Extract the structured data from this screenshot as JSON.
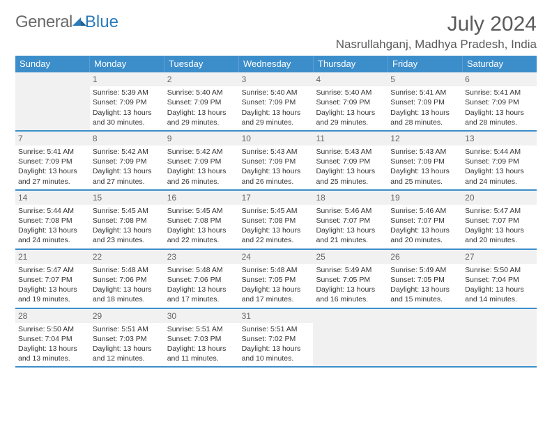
{
  "logo": {
    "general": "General",
    "blue": "Blue"
  },
  "title": "July 2024",
  "location": "Nasrullahganj, Madhya Pradesh, India",
  "colors": {
    "header_bg": "#3c8ecb",
    "header_border": "#5a9fd4",
    "week_divider": "#3c8ecb",
    "shaded_bg": "#f1f1f1",
    "text": "#333333",
    "title_text": "#5a5a5a",
    "logo_gray": "#6a6a6a",
    "logo_blue": "#2a7ab9"
  },
  "typography": {
    "title_fontsize": 30,
    "location_fontsize": 17,
    "dayheader_fontsize": 13,
    "daynum_fontsize": 12,
    "cell_fontsize": 10.5
  },
  "day_names": [
    "Sunday",
    "Monday",
    "Tuesday",
    "Wednesday",
    "Thursday",
    "Friday",
    "Saturday"
  ],
  "weeks": [
    [
      {
        "day": "",
        "sunrise": "",
        "sunset": "",
        "daylight": ""
      },
      {
        "day": "1",
        "sunrise": "Sunrise: 5:39 AM",
        "sunset": "Sunset: 7:09 PM",
        "daylight": "Daylight: 13 hours and 30 minutes."
      },
      {
        "day": "2",
        "sunrise": "Sunrise: 5:40 AM",
        "sunset": "Sunset: 7:09 PM",
        "daylight": "Daylight: 13 hours and 29 minutes."
      },
      {
        "day": "3",
        "sunrise": "Sunrise: 5:40 AM",
        "sunset": "Sunset: 7:09 PM",
        "daylight": "Daylight: 13 hours and 29 minutes."
      },
      {
        "day": "4",
        "sunrise": "Sunrise: 5:40 AM",
        "sunset": "Sunset: 7:09 PM",
        "daylight": "Daylight: 13 hours and 29 minutes."
      },
      {
        "day": "5",
        "sunrise": "Sunrise: 5:41 AM",
        "sunset": "Sunset: 7:09 PM",
        "daylight": "Daylight: 13 hours and 28 minutes."
      },
      {
        "day": "6",
        "sunrise": "Sunrise: 5:41 AM",
        "sunset": "Sunset: 7:09 PM",
        "daylight": "Daylight: 13 hours and 28 minutes."
      }
    ],
    [
      {
        "day": "7",
        "sunrise": "Sunrise: 5:41 AM",
        "sunset": "Sunset: 7:09 PM",
        "daylight": "Daylight: 13 hours and 27 minutes."
      },
      {
        "day": "8",
        "sunrise": "Sunrise: 5:42 AM",
        "sunset": "Sunset: 7:09 PM",
        "daylight": "Daylight: 13 hours and 27 minutes."
      },
      {
        "day": "9",
        "sunrise": "Sunrise: 5:42 AM",
        "sunset": "Sunset: 7:09 PM",
        "daylight": "Daylight: 13 hours and 26 minutes."
      },
      {
        "day": "10",
        "sunrise": "Sunrise: 5:43 AM",
        "sunset": "Sunset: 7:09 PM",
        "daylight": "Daylight: 13 hours and 26 minutes."
      },
      {
        "day": "11",
        "sunrise": "Sunrise: 5:43 AM",
        "sunset": "Sunset: 7:09 PM",
        "daylight": "Daylight: 13 hours and 25 minutes."
      },
      {
        "day": "12",
        "sunrise": "Sunrise: 5:43 AM",
        "sunset": "Sunset: 7:09 PM",
        "daylight": "Daylight: 13 hours and 25 minutes."
      },
      {
        "day": "13",
        "sunrise": "Sunrise: 5:44 AM",
        "sunset": "Sunset: 7:09 PM",
        "daylight": "Daylight: 13 hours and 24 minutes."
      }
    ],
    [
      {
        "day": "14",
        "sunrise": "Sunrise: 5:44 AM",
        "sunset": "Sunset: 7:08 PM",
        "daylight": "Daylight: 13 hours and 24 minutes."
      },
      {
        "day": "15",
        "sunrise": "Sunrise: 5:45 AM",
        "sunset": "Sunset: 7:08 PM",
        "daylight": "Daylight: 13 hours and 23 minutes."
      },
      {
        "day": "16",
        "sunrise": "Sunrise: 5:45 AM",
        "sunset": "Sunset: 7:08 PM",
        "daylight": "Daylight: 13 hours and 22 minutes."
      },
      {
        "day": "17",
        "sunrise": "Sunrise: 5:45 AM",
        "sunset": "Sunset: 7:08 PM",
        "daylight": "Daylight: 13 hours and 22 minutes."
      },
      {
        "day": "18",
        "sunrise": "Sunrise: 5:46 AM",
        "sunset": "Sunset: 7:07 PM",
        "daylight": "Daylight: 13 hours and 21 minutes."
      },
      {
        "day": "19",
        "sunrise": "Sunrise: 5:46 AM",
        "sunset": "Sunset: 7:07 PM",
        "daylight": "Daylight: 13 hours and 20 minutes."
      },
      {
        "day": "20",
        "sunrise": "Sunrise: 5:47 AM",
        "sunset": "Sunset: 7:07 PM",
        "daylight": "Daylight: 13 hours and 20 minutes."
      }
    ],
    [
      {
        "day": "21",
        "sunrise": "Sunrise: 5:47 AM",
        "sunset": "Sunset: 7:07 PM",
        "daylight": "Daylight: 13 hours and 19 minutes."
      },
      {
        "day": "22",
        "sunrise": "Sunrise: 5:48 AM",
        "sunset": "Sunset: 7:06 PM",
        "daylight": "Daylight: 13 hours and 18 minutes."
      },
      {
        "day": "23",
        "sunrise": "Sunrise: 5:48 AM",
        "sunset": "Sunset: 7:06 PM",
        "daylight": "Daylight: 13 hours and 17 minutes."
      },
      {
        "day": "24",
        "sunrise": "Sunrise: 5:48 AM",
        "sunset": "Sunset: 7:05 PM",
        "daylight": "Daylight: 13 hours and 17 minutes."
      },
      {
        "day": "25",
        "sunrise": "Sunrise: 5:49 AM",
        "sunset": "Sunset: 7:05 PM",
        "daylight": "Daylight: 13 hours and 16 minutes."
      },
      {
        "day": "26",
        "sunrise": "Sunrise: 5:49 AM",
        "sunset": "Sunset: 7:05 PM",
        "daylight": "Daylight: 13 hours and 15 minutes."
      },
      {
        "day": "27",
        "sunrise": "Sunrise: 5:50 AM",
        "sunset": "Sunset: 7:04 PM",
        "daylight": "Daylight: 13 hours and 14 minutes."
      }
    ],
    [
      {
        "day": "28",
        "sunrise": "Sunrise: 5:50 AM",
        "sunset": "Sunset: 7:04 PM",
        "daylight": "Daylight: 13 hours and 13 minutes."
      },
      {
        "day": "29",
        "sunrise": "Sunrise: 5:51 AM",
        "sunset": "Sunset: 7:03 PM",
        "daylight": "Daylight: 13 hours and 12 minutes."
      },
      {
        "day": "30",
        "sunrise": "Sunrise: 5:51 AM",
        "sunset": "Sunset: 7:03 PM",
        "daylight": "Daylight: 13 hours and 11 minutes."
      },
      {
        "day": "31",
        "sunrise": "Sunrise: 5:51 AM",
        "sunset": "Sunset: 7:02 PM",
        "daylight": "Daylight: 13 hours and 10 minutes."
      },
      {
        "day": "",
        "sunrise": "",
        "sunset": "",
        "daylight": ""
      },
      {
        "day": "",
        "sunrise": "",
        "sunset": "",
        "daylight": ""
      },
      {
        "day": "",
        "sunrise": "",
        "sunset": "",
        "daylight": ""
      }
    ]
  ]
}
